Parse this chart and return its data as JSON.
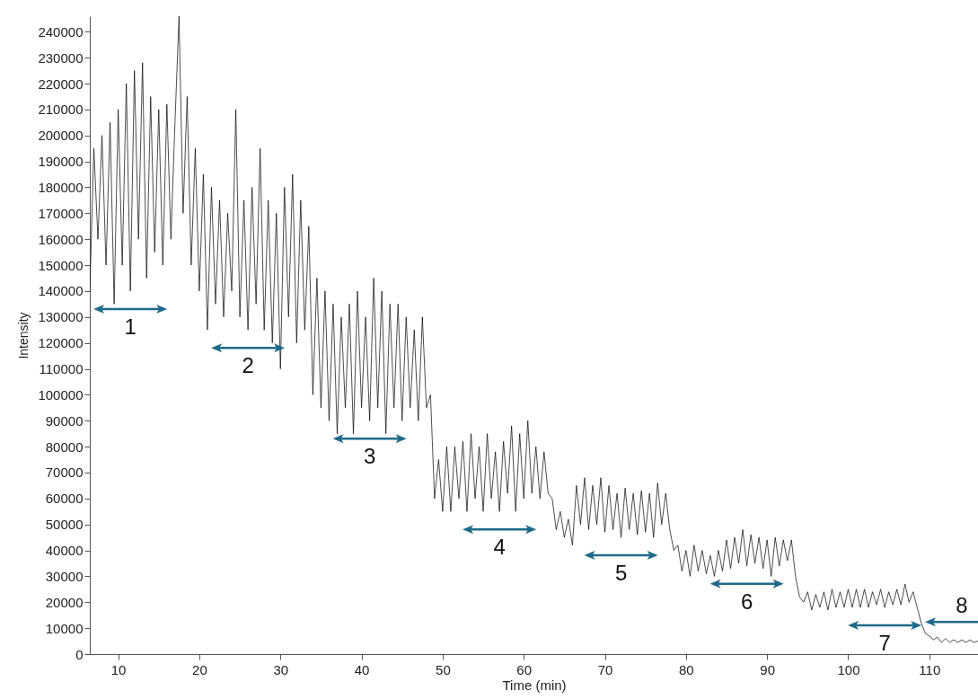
{
  "chart_data": {
    "type": "line",
    "xlabel": "Time (min)",
    "ylabel": "Intensity",
    "xlim": [
      6.5,
      116
    ],
    "ylim": [
      0,
      246000
    ],
    "xticks": [
      10,
      20,
      30,
      40,
      50,
      60,
      70,
      80,
      90,
      100,
      110
    ],
    "yticks": [
      0,
      10000,
      20000,
      30000,
      40000,
      50000,
      60000,
      70000,
      80000,
      90000,
      100000,
      110000,
      120000,
      130000,
      140000,
      150000,
      160000,
      170000,
      180000,
      190000,
      200000,
      210000,
      220000,
      230000,
      240000
    ],
    "grid": false,
    "marker": "none",
    "line_style": "solid",
    "series": [
      {
        "color": "#000000",
        "x": [
          6.5,
          7,
          7.5,
          8,
          8.5,
          9,
          9.5,
          10,
          10.5,
          11,
          11.5,
          12,
          12.5,
          13,
          13.5,
          14,
          14.5,
          15,
          15.5,
          16,
          16.5,
          17,
          17.5,
          18,
          18.5,
          19,
          19.5,
          20,
          20.5,
          21,
          21.5,
          22,
          22.5,
          23,
          23.5,
          24,
          24.5,
          25,
          25.5,
          26,
          26.5,
          27,
          27.5,
          28,
          28.5,
          29,
          29.5,
          30,
          30.5,
          31,
          31.5,
          32,
          32.5,
          33,
          33.5,
          34,
          34.5,
          35,
          35.5,
          36,
          36.5,
          37,
          37.5,
          38,
          38.5,
          39,
          39.5,
          40,
          40.5,
          41,
          41.5,
          42,
          42.5,
          43,
          43.5,
          44,
          44.5,
          45,
          45.5,
          46,
          46.5,
          47,
          47.5,
          48,
          48.5,
          49,
          49.5,
          50,
          50.5,
          51,
          51.5,
          52,
          52.5,
          53,
          53.5,
          54,
          54.5,
          55,
          55.5,
          56,
          56.5,
          57,
          57.5,
          58,
          58.5,
          59,
          59.5,
          60,
          60.5,
          61,
          61.5,
          62,
          62.5,
          63,
          63.5,
          64,
          64.5,
          65,
          65.5,
          66,
          66.5,
          67,
          67.5,
          68,
          68.5,
          69,
          69.5,
          70,
          70.5,
          71,
          71.5,
          72,
          72.5,
          73,
          73.5,
          74,
          74.5,
          75,
          75.5,
          76,
          76.5,
          77,
          77.5,
          78,
          78.5,
          79,
          79.5,
          80,
          80.5,
          81,
          81.5,
          82,
          82.5,
          83,
          83.5,
          84,
          84.5,
          85,
          85.5,
          86,
          86.5,
          87,
          87.5,
          88,
          88.5,
          89,
          89.5,
          90,
          90.5,
          91,
          91.5,
          92,
          92.5,
          93,
          93.5,
          94,
          94.5,
          95,
          95.5,
          96,
          96.5,
          97,
          97.5,
          98,
          98.5,
          99,
          99.5,
          100,
          100.5,
          101,
          101.5,
          102,
          102.5,
          103,
          103.5,
          104,
          104.5,
          105,
          105.5,
          106,
          106.5,
          107,
          107.5,
          108,
          108.5,
          109,
          109.5,
          110,
          110.5,
          111,
          111.5,
          112,
          112.5,
          113,
          113.5,
          114,
          114.5,
          115,
          115.5,
          116
        ],
        "values": [
          140000,
          195000,
          160000,
          200000,
          150000,
          205000,
          135000,
          210000,
          150000,
          220000,
          140000,
          225000,
          160000,
          228000,
          145000,
          215000,
          155000,
          210000,
          150000,
          212000,
          160000,
          205000,
          246000,
          170000,
          215000,
          150000,
          195000,
          140000,
          185000,
          125000,
          180000,
          135000,
          175000,
          130000,
          170000,
          140000,
          210000,
          130000,
          175000,
          125000,
          180000,
          135000,
          195000,
          125000,
          175000,
          120000,
          170000,
          110000,
          180000,
          130000,
          185000,
          120000,
          175000,
          125000,
          165000,
          100000,
          145000,
          95000,
          140000,
          90000,
          135000,
          85000,
          130000,
          95000,
          135000,
          85000,
          140000,
          95000,
          130000,
          90000,
          145000,
          95000,
          140000,
          85000,
          135000,
          95000,
          135000,
          90000,
          130000,
          95000,
          125000,
          90000,
          130000,
          95000,
          100000,
          60000,
          75000,
          55000,
          80000,
          55000,
          80000,
          60000,
          82000,
          55000,
          85000,
          60000,
          80000,
          55000,
          85000,
          60000,
          78000,
          55000,
          82000,
          62000,
          88000,
          55000,
          85000,
          60000,
          90000,
          62000,
          80000,
          60000,
          78000,
          62000,
          60000,
          48000,
          55000,
          45000,
          52000,
          42000,
          65000,
          50000,
          68000,
          48000,
          65000,
          50000,
          68000,
          47000,
          65000,
          48000,
          62000,
          45000,
          64000,
          48000,
          62000,
          46000,
          63000,
          47000,
          62000,
          45000,
          66000,
          50000,
          62000,
          48000,
          40000,
          42000,
          32000,
          40000,
          30000,
          42000,
          32000,
          40000,
          31000,
          38000,
          30000,
          40000,
          32000,
          44000,
          33000,
          45000,
          35000,
          48000,
          34000,
          46000,
          35000,
          45000,
          33000,
          44000,
          30000,
          45000,
          34000,
          44000,
          36000,
          44000,
          30000,
          22000,
          20000,
          24000,
          17000,
          23000,
          18000,
          24000,
          17000,
          25000,
          18000,
          24000,
          18000,
          25000,
          18000,
          25000,
          18000,
          25000,
          18000,
          24000,
          19000,
          25000,
          18000,
          24000,
          19000,
          25000,
          19000,
          27000,
          20000,
          24000,
          18000,
          12000,
          8000,
          7000,
          5500,
          6500,
          4500,
          6000,
          4500,
          5500,
          4500,
          5500,
          4500,
          5500,
          4500,
          5000
        ]
      }
    ],
    "annotations": [
      {
        "text": "1",
        "x": 11.5,
        "y": 140000
      },
      {
        "text": "2",
        "x": 26,
        "y": 125000
      },
      {
        "text": "3",
        "x": 41,
        "y": 90000
      },
      {
        "text": "4",
        "x": 57,
        "y": 55000
      },
      {
        "text": "5",
        "x": 72,
        "y": 45000
      },
      {
        "text": "6",
        "x": 87.5,
        "y": 34000
      },
      {
        "text": "7",
        "x": 104.5,
        "y": 18000
      },
      {
        "text": "8",
        "x": 114,
        "y": 5500
      }
    ]
  }
}
